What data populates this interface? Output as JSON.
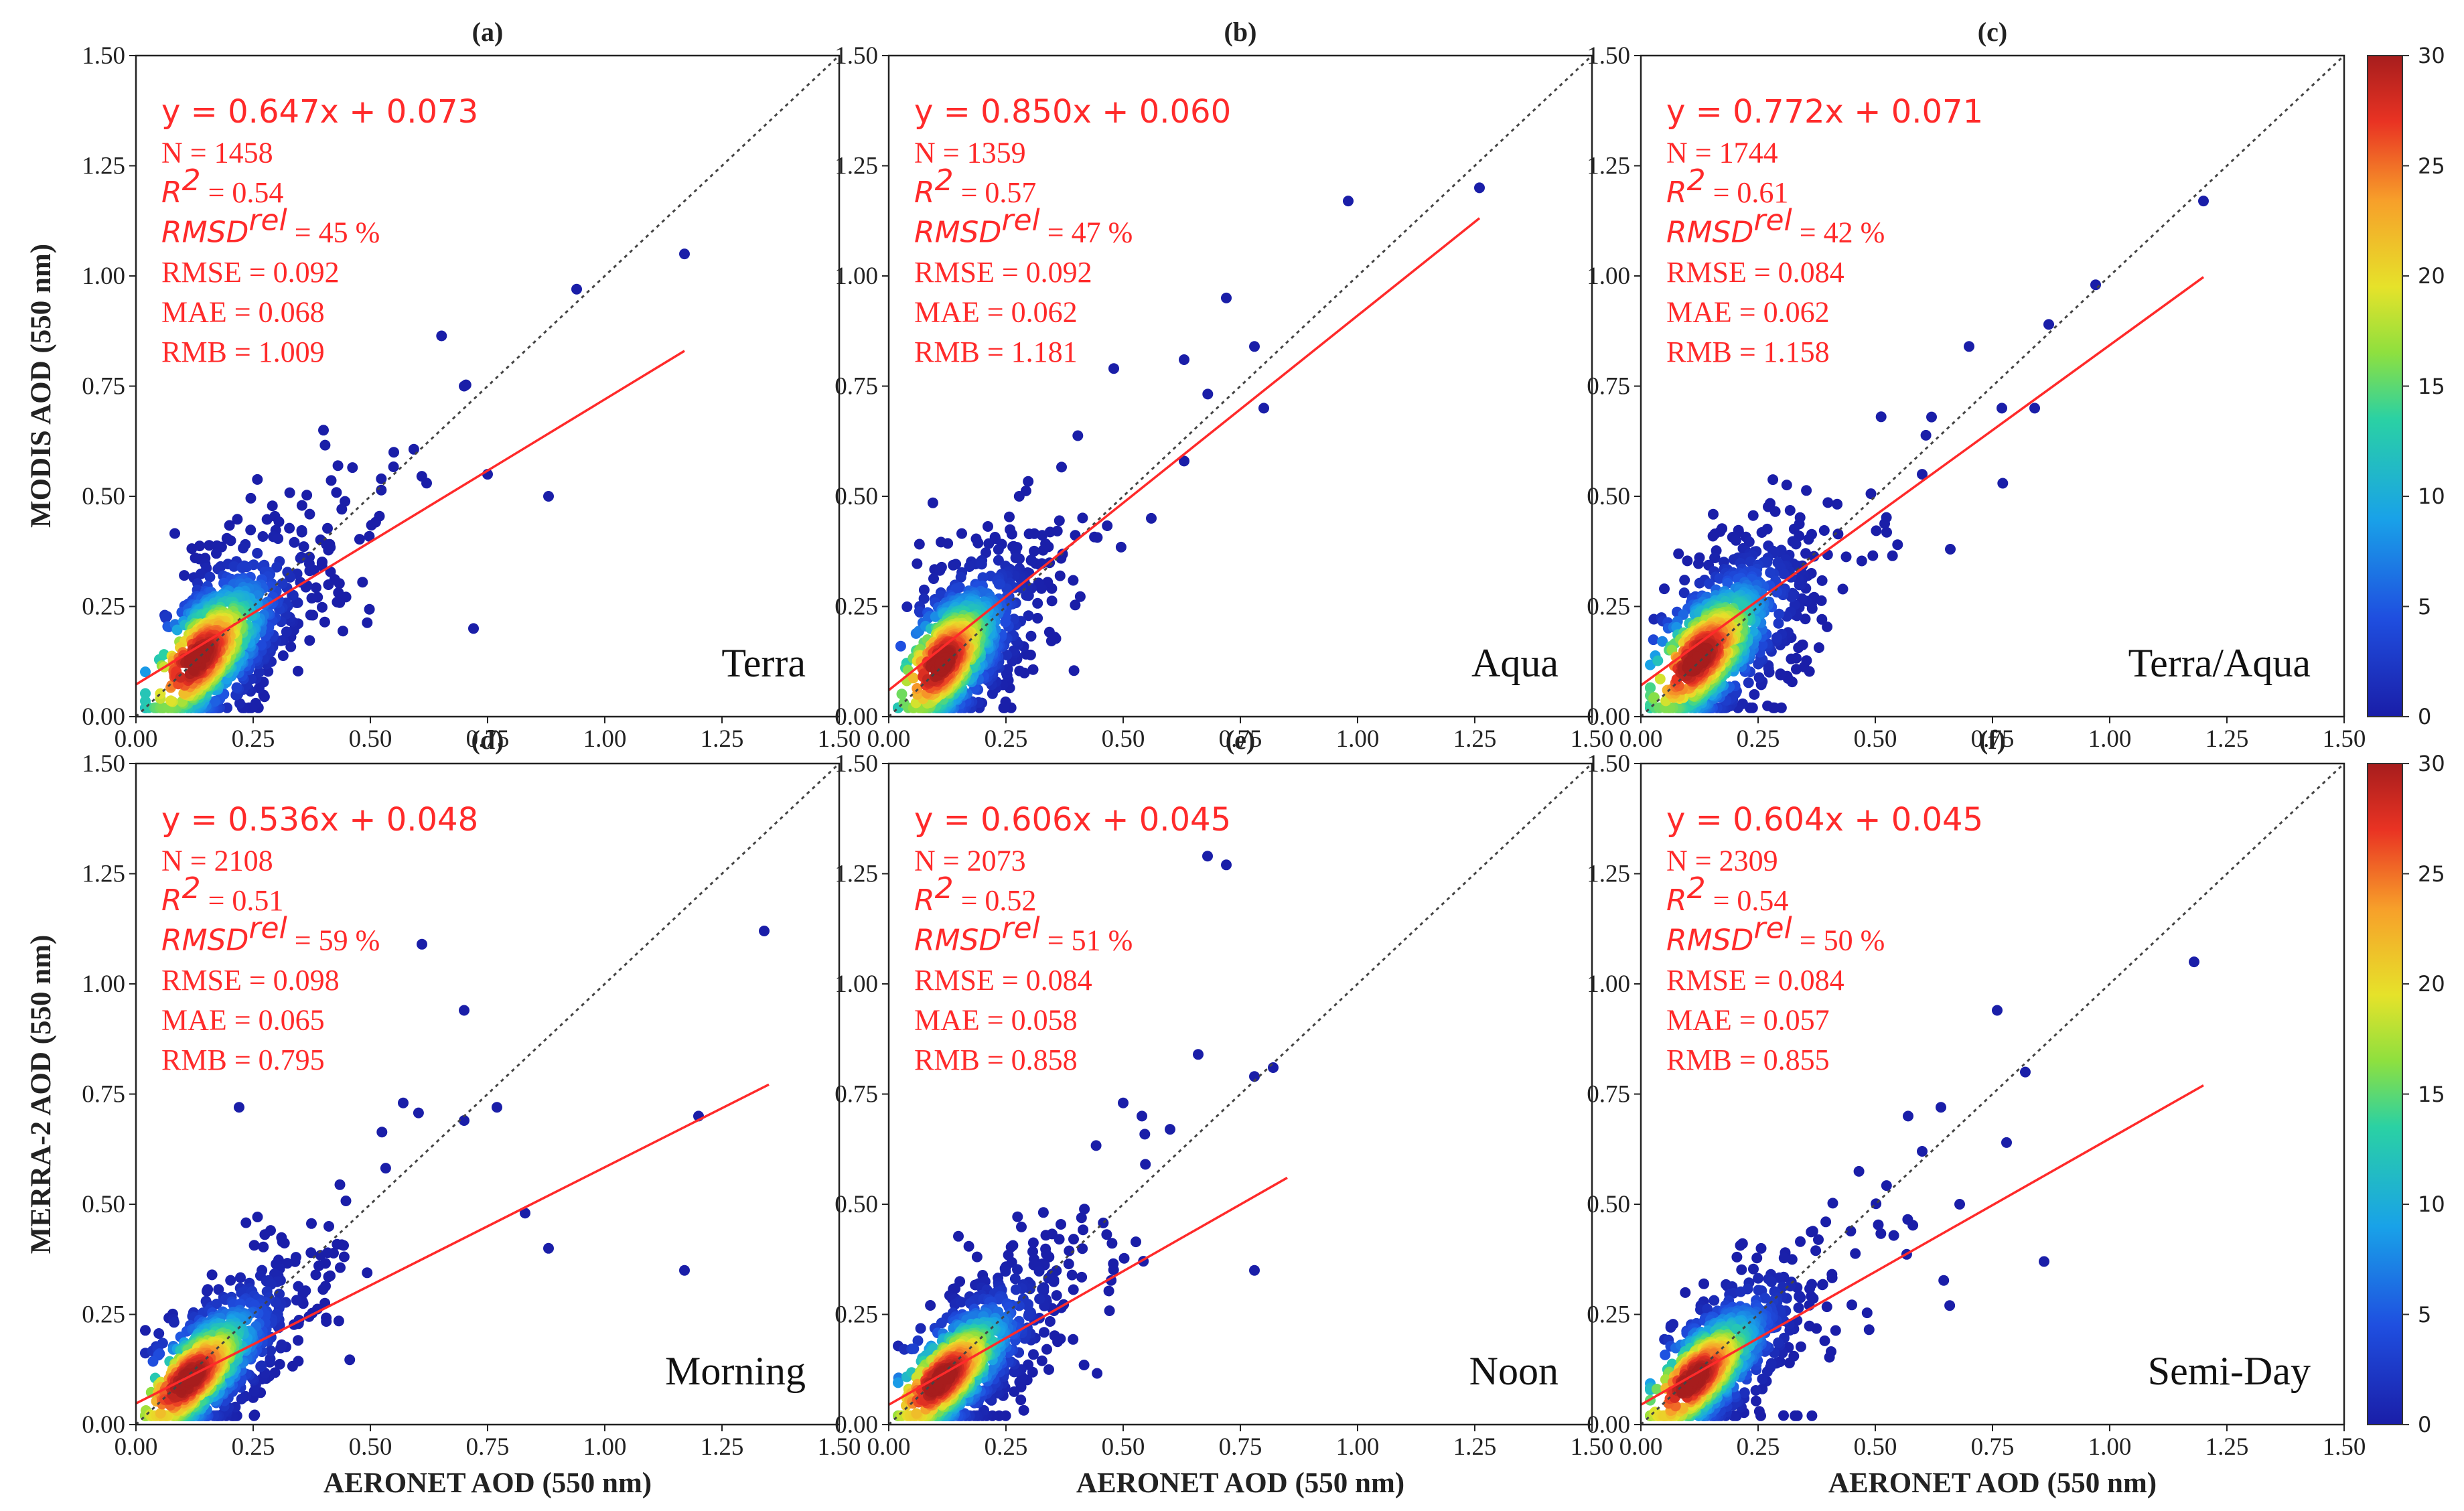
{
  "figure": {
    "y_axis_labels": [
      "MODIS  AOD (550 nm)",
      "MERRA-2 AOD (550 nm)"
    ],
    "x_axis_label": "AERONET AOD (550 nm)",
    "colorbar": {
      "ticks": [
        "0",
        "5",
        "10",
        "15",
        "20",
        "25",
        "30"
      ],
      "range": [
        0,
        30
      ]
    },
    "colors": {
      "fit_line": "#ff2a2a",
      "text": "#ff2a2a",
      "point_low": "#1a1ea8"
    }
  },
  "chart_data": [
    {
      "type": "scatter",
      "panel": "(a)",
      "site": "Terra",
      "xlim": [
        0,
        1.5
      ],
      "ylim": [
        0,
        1.5
      ],
      "xticks": [
        "0.00",
        "0.25",
        "0.50",
        "0.75",
        "1.00",
        "1.25",
        "1.50"
      ],
      "yticks": [
        "0.00",
        "0.25",
        "0.50",
        "0.75",
        "1.00",
        "1.25",
        "1.50"
      ],
      "fit": {
        "slope": 0.647,
        "intercept": 0.073,
        "x_end": 1.17
      },
      "equation": "y = 0.647x + 0.073",
      "stats": {
        "n": "N = 1458",
        "r2_value": " = 0.54",
        "rmsd_value": " = 45 %",
        "rmse": "RMSE = 0.092",
        "mae": "MAE = 0.068",
        "rmb": "RMB = 1.009"
      },
      "density_center": [
        0.13,
        0.13
      ],
      "density_spread": [
        0.07,
        0.06
      ],
      "outliers": [
        [
          1.17,
          1.05
        ],
        [
          0.94,
          0.97
        ],
        [
          0.7,
          0.75
        ],
        [
          0.88,
          0.5
        ],
        [
          0.55,
          0.6
        ],
        [
          0.62,
          0.53
        ],
        [
          0.75,
          0.55
        ],
        [
          0.72,
          0.2
        ],
        [
          0.4,
          0.65
        ]
      ]
    },
    {
      "type": "scatter",
      "panel": "(b)",
      "site": "Aqua",
      "xlim": [
        0,
        1.5
      ],
      "ylim": [
        0,
        1.5
      ],
      "xticks": [
        "0.00",
        "0.25",
        "0.50",
        "0.75",
        "1.00",
        "1.25",
        "1.50"
      ],
      "yticks": [
        "0.00",
        "0.25",
        "0.50",
        "0.75",
        "1.00",
        "1.25",
        "1.50"
      ],
      "fit": {
        "slope": 0.85,
        "intercept": 0.06,
        "x_end": 1.26
      },
      "equation": "y = 0.850x + 0.060",
      "stats": {
        "n": "N = 1359",
        "r2_value": " = 0.57",
        "rmsd_value": " = 47 %",
        "rmse": "RMSE = 0.092",
        "mae": "MAE = 0.062",
        "rmb": "RMB = 1.181"
      },
      "density_center": [
        0.11,
        0.12
      ],
      "density_spread": [
        0.06,
        0.06
      ],
      "outliers": [
        [
          1.26,
          1.2
        ],
        [
          0.98,
          1.17
        ],
        [
          0.72,
          0.95
        ],
        [
          0.78,
          0.84
        ],
        [
          0.63,
          0.81
        ],
        [
          0.8,
          0.7
        ],
        [
          0.48,
          0.79
        ],
        [
          0.63,
          0.58
        ],
        [
          0.56,
          0.45
        ]
      ]
    },
    {
      "type": "scatter",
      "panel": "(c)",
      "site": "Terra/Aqua",
      "xlim": [
        0,
        1.5
      ],
      "ylim": [
        0,
        1.5
      ],
      "xticks": [
        "0.00",
        "0.25",
        "0.50",
        "0.75",
        "1.00",
        "1.25",
        "1.50"
      ],
      "yticks": [
        "0.00",
        "0.25",
        "0.50",
        "0.75",
        "1.00",
        "1.25",
        "1.50"
      ],
      "fit": {
        "slope": 0.772,
        "intercept": 0.071,
        "x_end": 1.2
      },
      "equation": "y = 0.772x + 0.071",
      "stats": {
        "n": "N = 1744",
        "r2_value": " = 0.61",
        "rmsd_value": " = 42 %",
        "rmse": "RMSE = 0.084",
        "mae": "MAE = 0.062",
        "rmb": "RMB = 1.158"
      },
      "density_center": [
        0.12,
        0.13
      ],
      "density_spread": [
        0.07,
        0.06
      ],
      "outliers": [
        [
          1.2,
          1.17
        ],
        [
          0.97,
          0.98
        ],
        [
          0.87,
          0.89
        ],
        [
          0.7,
          0.84
        ],
        [
          0.84,
          0.7
        ],
        [
          0.77,
          0.7
        ],
        [
          0.62,
          0.68
        ],
        [
          0.6,
          0.55
        ],
        [
          0.66,
          0.38
        ]
      ]
    },
    {
      "type": "scatter",
      "panel": "(d)",
      "site": "Morning",
      "xlim": [
        0,
        1.5
      ],
      "ylim": [
        0,
        1.5
      ],
      "xticks": [
        "0.00",
        "0.25",
        "0.50",
        "0.75",
        "1.00",
        "1.25",
        "1.50"
      ],
      "yticks": [
        "0.00",
        "0.25",
        "0.50",
        "0.75",
        "1.00",
        "1.25",
        "1.50"
      ],
      "fit": {
        "slope": 0.536,
        "intercept": 0.048,
        "x_end": 1.35
      },
      "equation": "y = 0.536x + 0.048",
      "stats": {
        "n": "N = 2108",
        "r2_value": " = 0.51",
        "rmsd_value": " = 59 %",
        "rmse": "RMSE = 0.098",
        "mae": "MAE = 0.065",
        "rmb": "RMB = 0.795"
      },
      "density_center": [
        0.11,
        0.1
      ],
      "density_spread": [
        0.07,
        0.05
      ],
      "outliers": [
        [
          1.34,
          1.12
        ],
        [
          0.61,
          1.09
        ],
        [
          0.7,
          0.94
        ],
        [
          0.22,
          0.72
        ],
        [
          1.2,
          0.7
        ],
        [
          0.7,
          0.69
        ],
        [
          0.77,
          0.72
        ],
        [
          0.83,
          0.48
        ],
        [
          1.17,
          0.35
        ],
        [
          0.88,
          0.4
        ],
        [
          0.57,
          0.73
        ]
      ]
    },
    {
      "type": "scatter",
      "panel": "(e)",
      "site": "Noon",
      "xlim": [
        0,
        1.5
      ],
      "ylim": [
        0,
        1.5
      ],
      "xticks": [
        "0.00",
        "0.25",
        "0.50",
        "0.75",
        "1.00",
        "1.25",
        "1.50"
      ],
      "yticks": [
        "0.00",
        "0.25",
        "0.50",
        "0.75",
        "1.00",
        "1.25",
        "1.50"
      ],
      "fit": {
        "slope": 0.606,
        "intercept": 0.045,
        "x_end": 0.85
      },
      "equation": "y = 0.606x + 0.045",
      "stats": {
        "n": "N = 2073",
        "r2_value": " = 0.52",
        "rmsd_value": " = 51 %",
        "rmse": "RMSE = 0.084",
        "mae": "MAE = 0.058",
        "rmb": "RMB = 0.858"
      },
      "density_center": [
        0.11,
        0.1
      ],
      "density_spread": [
        0.07,
        0.05
      ],
      "outliers": [
        [
          0.68,
          1.29
        ],
        [
          0.72,
          1.27
        ],
        [
          0.66,
          0.84
        ],
        [
          0.78,
          0.79
        ],
        [
          0.82,
          0.81
        ],
        [
          0.5,
          0.73
        ],
        [
          0.6,
          0.67
        ],
        [
          0.78,
          0.35
        ],
        [
          0.54,
          0.7
        ]
      ]
    },
    {
      "type": "scatter",
      "panel": "(f)",
      "site": "Semi-Day",
      "xlim": [
        0,
        1.5
      ],
      "ylim": [
        0,
        1.5
      ],
      "xticks": [
        "0.00",
        "0.25",
        "0.50",
        "0.75",
        "1.00",
        "1.25",
        "1.50"
      ],
      "yticks": [
        "0.00",
        "0.25",
        "0.50",
        "0.75",
        "1.00",
        "1.25",
        "1.50"
      ],
      "fit": {
        "slope": 0.604,
        "intercept": 0.045,
        "x_end": 1.2
      },
      "equation": "y = 0.604x + 0.045",
      "stats": {
        "n": "N = 2309",
        "r2_value": " = 0.54",
        "rmsd_value": " = 50 %",
        "rmse": "RMSE = 0.084",
        "mae": "MAE = 0.057",
        "rmb": "RMB = 0.855"
      },
      "density_center": [
        0.11,
        0.1
      ],
      "density_spread": [
        0.07,
        0.05
      ],
      "outliers": [
        [
          1.18,
          1.05
        ],
        [
          0.76,
          0.94
        ],
        [
          0.82,
          0.8
        ],
        [
          0.64,
          0.72
        ],
        [
          0.78,
          0.64
        ],
        [
          0.86,
          0.37
        ],
        [
          0.68,
          0.5
        ],
        [
          0.6,
          0.62
        ],
        [
          0.57,
          0.7
        ]
      ]
    }
  ]
}
